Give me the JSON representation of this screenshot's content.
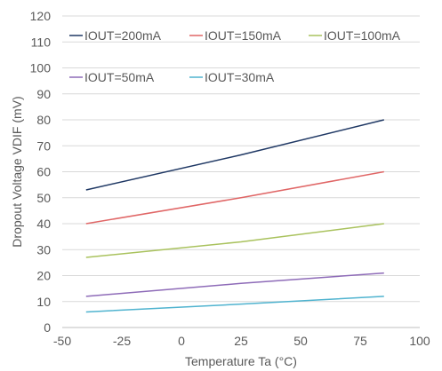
{
  "chart_data": {
    "type": "line",
    "xlabel": "Temperature Ta (°C)",
    "ylabel": "Dropout Voltage VDIF (mV)",
    "xlim": [
      -50,
      100
    ],
    "ylim": [
      0,
      120
    ],
    "xticks": [
      -50,
      -25,
      0,
      25,
      50,
      75,
      100
    ],
    "yticks": [
      0,
      10,
      20,
      30,
      40,
      50,
      60,
      70,
      80,
      90,
      100,
      110,
      120
    ],
    "grid": "horizontal",
    "legend_position": "top, inside plot area",
    "series": [
      {
        "name": "IOUT=200mA",
        "color": "#1f3864",
        "x": [
          -40,
          25,
          85
        ],
        "y": [
          53,
          66.5,
          80
        ]
      },
      {
        "name": "IOUT=150mA",
        "color": "#e06666",
        "x": [
          -40,
          25,
          85
        ],
        "y": [
          40,
          50,
          60
        ]
      },
      {
        "name": "IOUT=100mA",
        "color": "#a9c25d",
        "x": [
          -40,
          25,
          85
        ],
        "y": [
          27,
          33,
          40
        ]
      },
      {
        "name": "IOUT=50mA",
        "color": "#8e6bb8",
        "x": [
          -40,
          25,
          85
        ],
        "y": [
          12,
          17,
          21
        ]
      },
      {
        "name": "IOUT=30mA",
        "color": "#4fb3cf",
        "x": [
          -40,
          25,
          85
        ],
        "y": [
          6,
          9,
          12
        ]
      }
    ]
  }
}
